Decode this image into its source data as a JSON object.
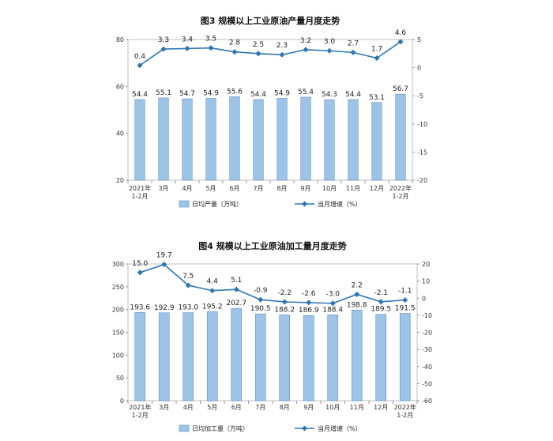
{
  "chart_data": [
    {
      "type": "bar",
      "title": "图3  规模以上工业原油产量月度走势",
      "categories": [
        "2021年|1-2月",
        "3月",
        "4月",
        "5月",
        "6月",
        "7月",
        "8月",
        "9月",
        "10月",
        "11月",
        "12月",
        "2022年|1-2月"
      ],
      "series": [
        {
          "name": "日均产量（万吨）",
          "type": "bar",
          "axis": "left",
          "color": "#9dc3e6",
          "values": [
            54.4,
            55.1,
            54.7,
            54.9,
            55.6,
            54.4,
            54.9,
            55.4,
            54.3,
            54.4,
            53.1,
            56.7
          ]
        },
        {
          "name": "当月增速（%）",
          "type": "line",
          "axis": "right",
          "color": "#2e75b6",
          "values": [
            0.4,
            3.3,
            3.4,
            3.5,
            2.8,
            2.5,
            2.3,
            3.2,
            3.0,
            2.7,
            1.7,
            4.6
          ]
        }
      ],
      "ylim": [
        20,
        80
      ],
      "yticks": [
        20,
        40,
        60,
        80
      ],
      "y2lim": [
        -20,
        5
      ],
      "y2ticks": [
        -20,
        -15,
        -10,
        -5,
        0,
        5
      ],
      "grid": false,
      "legend": "bottom"
    },
    {
      "type": "bar",
      "title": "图4  规模以上工业原油加工量月度走势",
      "categories": [
        "2021年|1-2月",
        "3月",
        "4月",
        "5月",
        "6月",
        "7月",
        "8月",
        "9月",
        "10月",
        "11月",
        "12月",
        "2022年|1-2月"
      ],
      "series": [
        {
          "name": "日均加工量（万吨）",
          "type": "bar",
          "axis": "left",
          "color": "#9dc3e6",
          "values": [
            193.6,
            192.9,
            193.0,
            195.2,
            202.7,
            190.5,
            188.2,
            186.9,
            188.4,
            198.8,
            189.5,
            191.5
          ]
        },
        {
          "name": "当月增速（%）",
          "type": "line",
          "axis": "right",
          "color": "#2e75b6",
          "values": [
            15.0,
            19.7,
            7.5,
            4.4,
            5.1,
            -0.9,
            -2.2,
            -2.6,
            -3.0,
            2.2,
            -2.1,
            -1.1
          ]
        }
      ],
      "ylim": [
        0,
        300
      ],
      "yticks": [
        0,
        50,
        100,
        150,
        200,
        250,
        300
      ],
      "y2lim": [
        -60,
        20
      ],
      "y2ticks": [
        -60,
        -50,
        -40,
        -30,
        -20,
        -10,
        0,
        10,
        20
      ],
      "grid": false,
      "legend": "bottom"
    }
  ]
}
